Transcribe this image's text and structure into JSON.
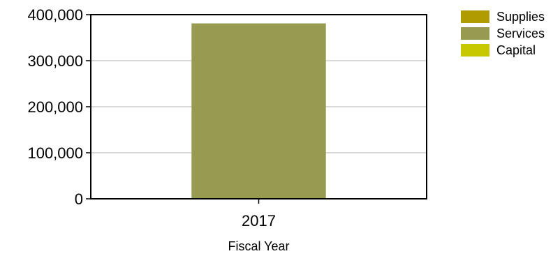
{
  "chart_data": {
    "type": "bar",
    "stacked": true,
    "categories": [
      "2017"
    ],
    "series": [
      {
        "name": "Supplies",
        "color": "#b09b00",
        "values": [
          0
        ]
      },
      {
        "name": "Services",
        "color": "#979b52",
        "values": [
          381000
        ]
      },
      {
        "name": "Capital",
        "color": "#c8c800",
        "values": [
          0
        ]
      }
    ],
    "xlabel": "Fiscal Year",
    "ylabel": "",
    "ylim": [
      0,
      400000
    ],
    "yticks": [
      0,
      100000,
      200000,
      300000,
      400000
    ],
    "ytick_labels": [
      "0",
      "100,000",
      "200,000",
      "300,000",
      "400,000"
    ],
    "grid": true,
    "legend_position": "top-right"
  }
}
